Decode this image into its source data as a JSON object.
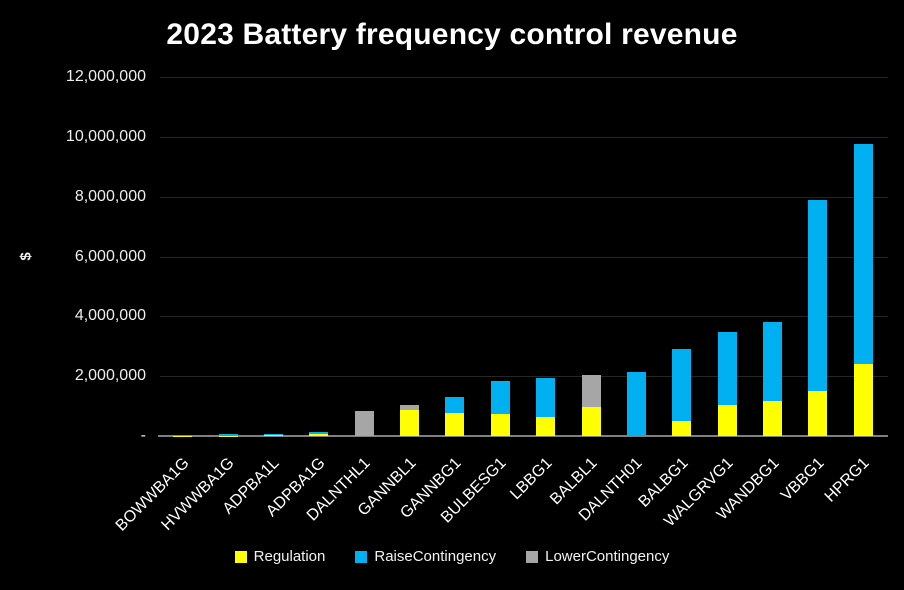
{
  "chart_data": {
    "type": "bar",
    "stacked": true,
    "title": "2023 Battery frequency control revenue",
    "ylabel": "$",
    "xlabel": "",
    "ylim": [
      0,
      12000000
    ],
    "y_tick_step": 2000000,
    "y_tick_values": [
      12000000,
      10000000,
      8000000,
      6000000,
      4000000,
      2000000,
      0
    ],
    "y_tick_labels": [
      "12,000,000",
      "10,000,000",
      "8,000,000",
      "6,000,000",
      "4,000,000",
      "2,000,000",
      "-"
    ],
    "grid": true,
    "legend_position": "bottom",
    "background": "#000000",
    "categories": [
      "BOWWBA1G",
      "HVWWBA1G",
      "ADPBA1L",
      "ADPBA1G",
      "DALNTHL1",
      "GANNBL1",
      "GANNBG1",
      "BULBESG1",
      "LBBG1",
      "BALBL1",
      "DALNTH01",
      "BALBG1",
      "WALGRVG1",
      "WANDBG1",
      "VBBG1",
      "HPRG1"
    ],
    "series": [
      {
        "name": "Regulation",
        "color": "#FFFF00",
        "values": [
          10000,
          15000,
          45000,
          70000,
          0,
          880000,
          760000,
          750000,
          620000,
          960000,
          0,
          490000,
          1040000,
          1180000,
          1520000,
          2400000
        ]
      },
      {
        "name": "RaiseContingency",
        "color": "#00B0F0",
        "values": [
          30000,
          55000,
          15000,
          60000,
          0,
          0,
          540000,
          1090000,
          1330000,
          0,
          2150000,
          2430000,
          2450000,
          2630000,
          6380000,
          7350000
        ]
      },
      {
        "name": "LowerContingency",
        "color": "#A6A6A6",
        "values": [
          0,
          0,
          0,
          0,
          850000,
          140000,
          0,
          0,
          0,
          1070000,
          0,
          0,
          0,
          0,
          0,
          0
        ]
      }
    ]
  }
}
